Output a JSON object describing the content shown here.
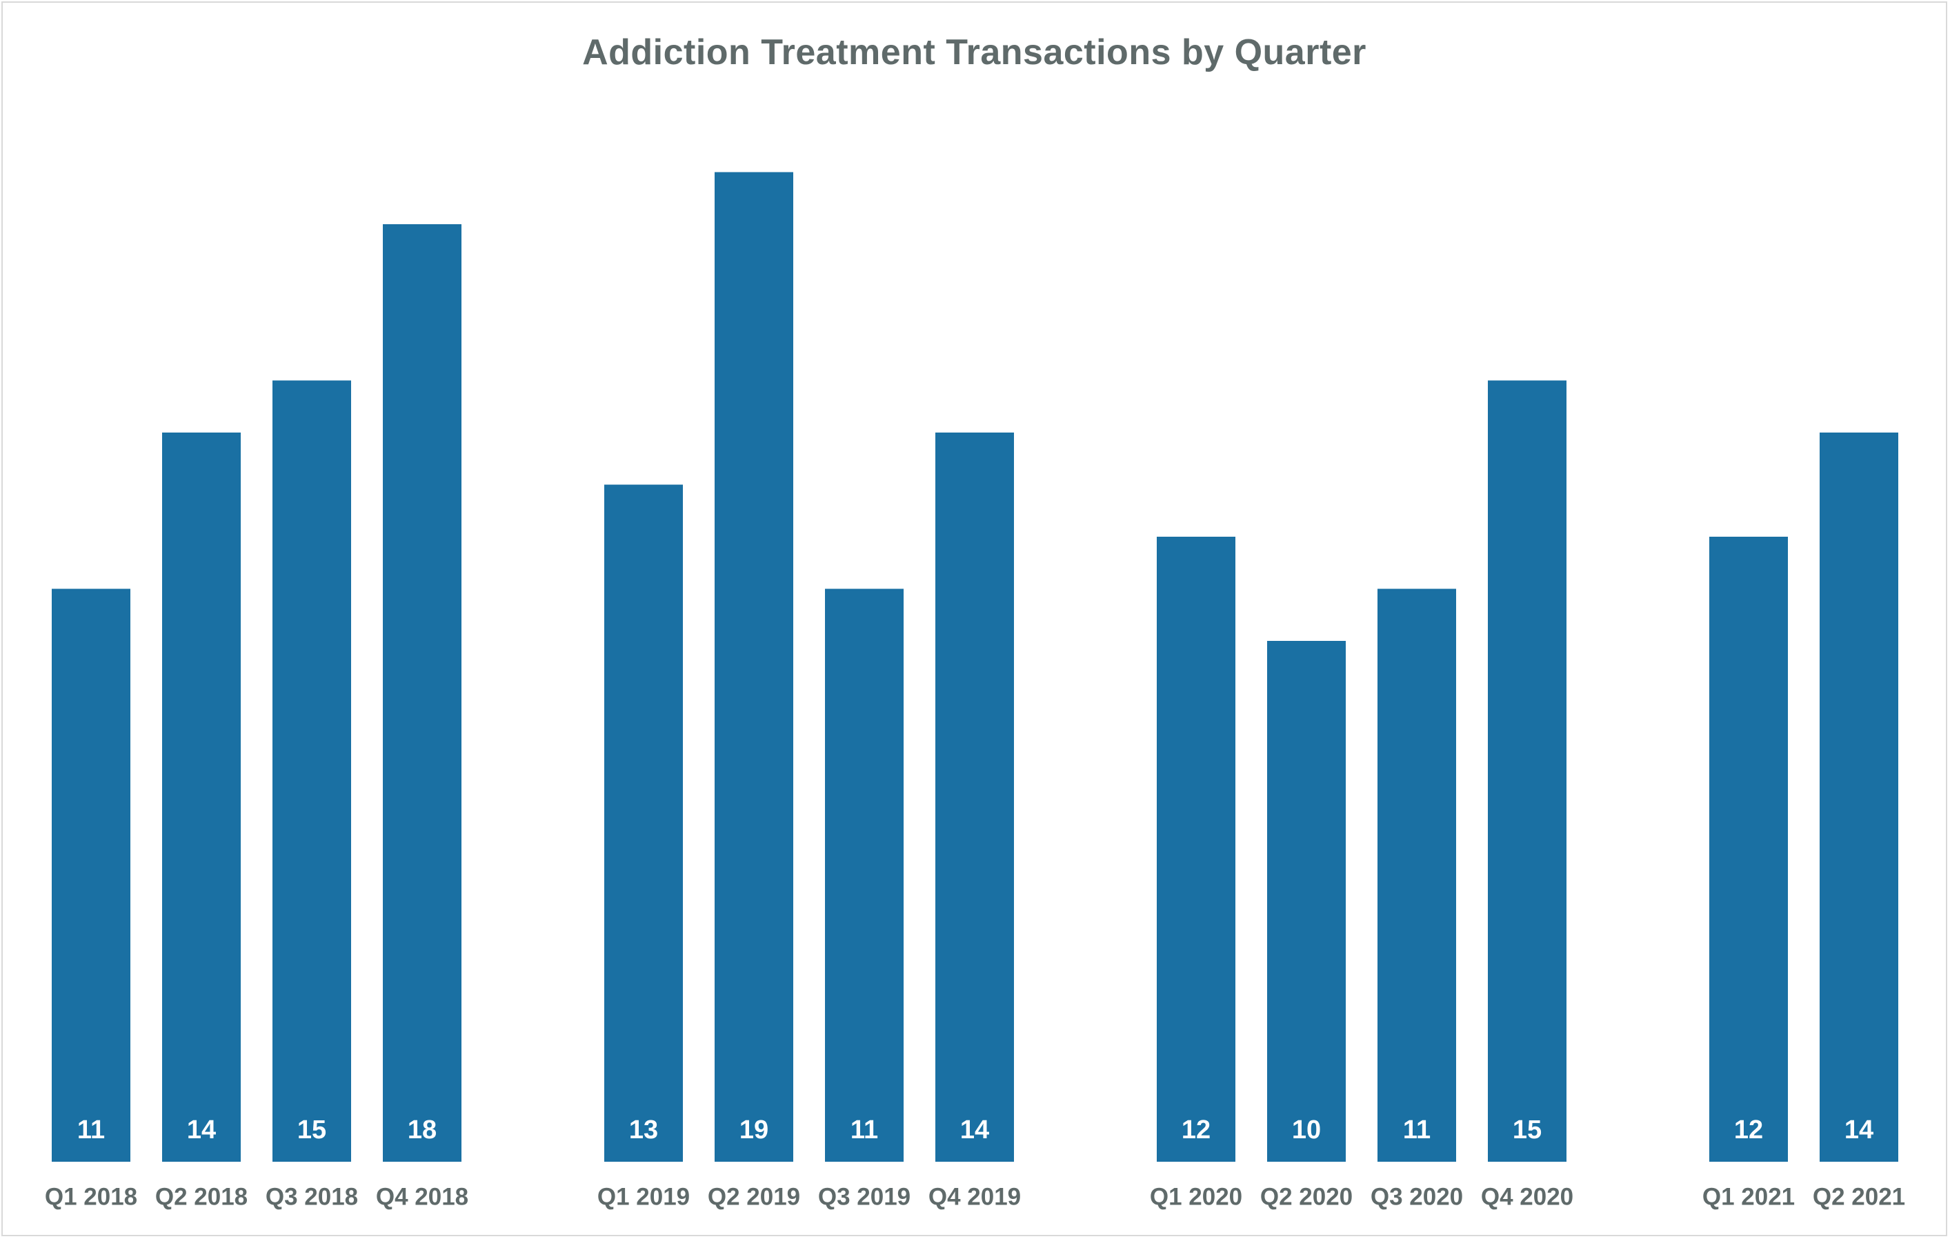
{
  "chart_data": {
    "type": "bar",
    "title": "Addiction Treatment Transactions by Quarter",
    "xlabel": "",
    "ylabel": "",
    "ylim": [
      0,
      20
    ],
    "grid": false,
    "legend": "none",
    "bar_color": "#1a70a3",
    "label_color": "#ffffff",
    "text_color": "#5f6a6a",
    "groups": [
      {
        "categories": [
          "Q1 2018",
          "Q2 2018",
          "Q3 2018",
          "Q4 2018"
        ],
        "values": [
          11,
          14,
          15,
          18
        ]
      },
      {
        "categories": [
          "Q1 2019",
          "Q2 2019",
          "Q3 2019",
          "Q4 2019"
        ],
        "values": [
          13,
          19,
          11,
          14
        ]
      },
      {
        "categories": [
          "Q1 2020",
          "Q2 2020",
          "Q3 2020",
          "Q4 2020"
        ],
        "values": [
          12,
          10,
          11,
          15
        ]
      },
      {
        "categories": [
          "Q1 2021",
          "Q2 2021"
        ],
        "values": [
          12,
          14
        ]
      }
    ]
  }
}
